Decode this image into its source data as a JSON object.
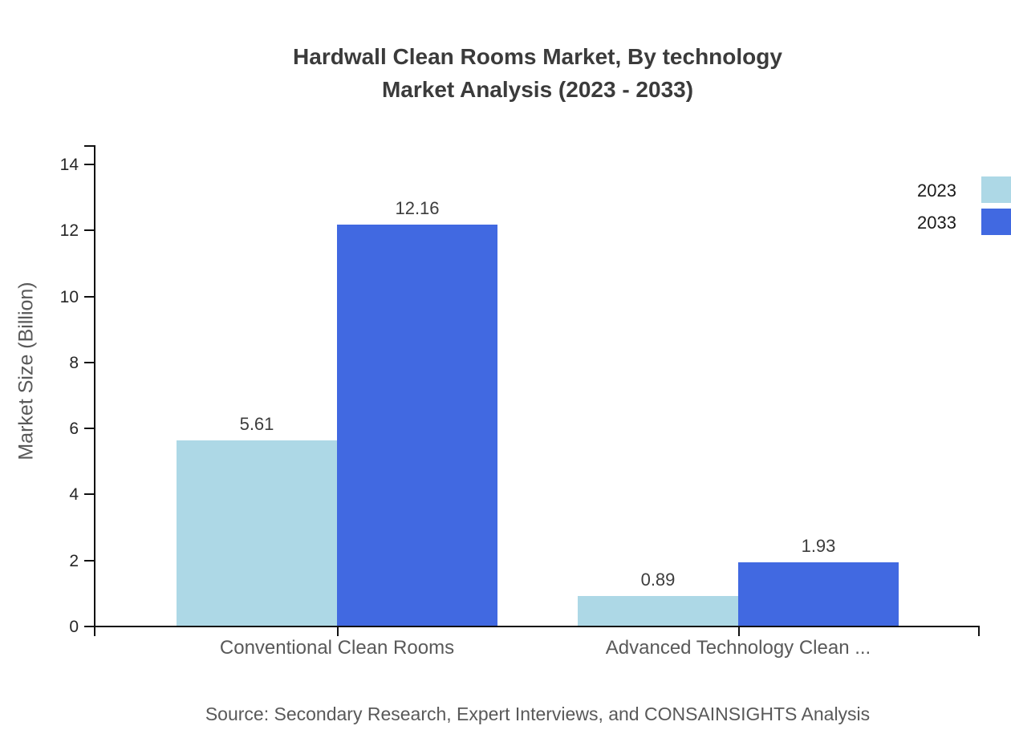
{
  "title": {
    "line1": "Hardwall Clean Rooms Market, By technology",
    "line2": "Market Analysis (2023 - 2033)"
  },
  "source": "Source: Secondary Research, Expert Interviews, and CONSAINSIGHTS Analysis",
  "legend": {
    "position": "right",
    "items": [
      {
        "label": "2023",
        "color": "#ADD8E6"
      },
      {
        "label": "2033",
        "color": "#4169E1"
      }
    ]
  },
  "chart_data": {
    "type": "bar",
    "title": "Hardwall Clean Rooms Market, By technology Market Analysis (2023 - 2033)",
    "categories": [
      "Conventional Clean Rooms",
      "Advanced Technology Clean ..."
    ],
    "series": [
      {
        "name": "2023",
        "color": "#ADD8E6",
        "values": [
          5.61,
          0.89
        ]
      },
      {
        "name": "2033",
        "color": "#4169E1",
        "values": [
          12.16,
          1.93
        ]
      }
    ],
    "data_labels": [
      [
        "5.61",
        "0.89"
      ],
      [
        "12.16",
        "1.93"
      ]
    ],
    "xlabel": "",
    "ylabel": "Market Size (Billion)",
    "yticks": [
      0,
      2,
      4,
      6,
      8,
      10,
      12,
      14
    ],
    "ylim": [
      0,
      14.6
    ],
    "grid": false,
    "axis_color": "#111111"
  }
}
